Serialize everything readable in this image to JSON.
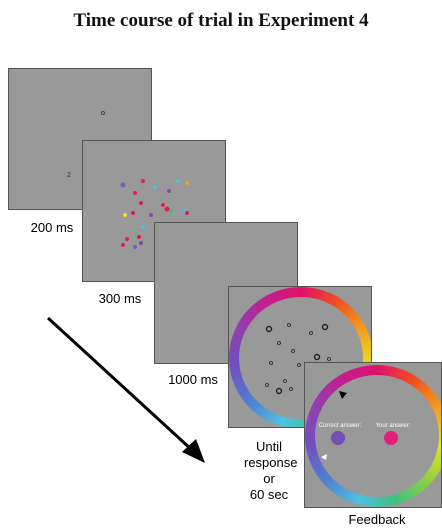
{
  "title": "Time course of trial in Experiment 4",
  "frames": [
    {
      "label": "200 ms"
    },
    {
      "label": "300 ms"
    },
    {
      "label": "1000 ms"
    },
    {
      "label_lines": [
        "Until",
        "response",
        "or",
        "60 sec"
      ]
    },
    {
      "label": "Feedback",
      "correct_label": "Correct answer:",
      "your_label": "Your answer:"
    }
  ]
}
